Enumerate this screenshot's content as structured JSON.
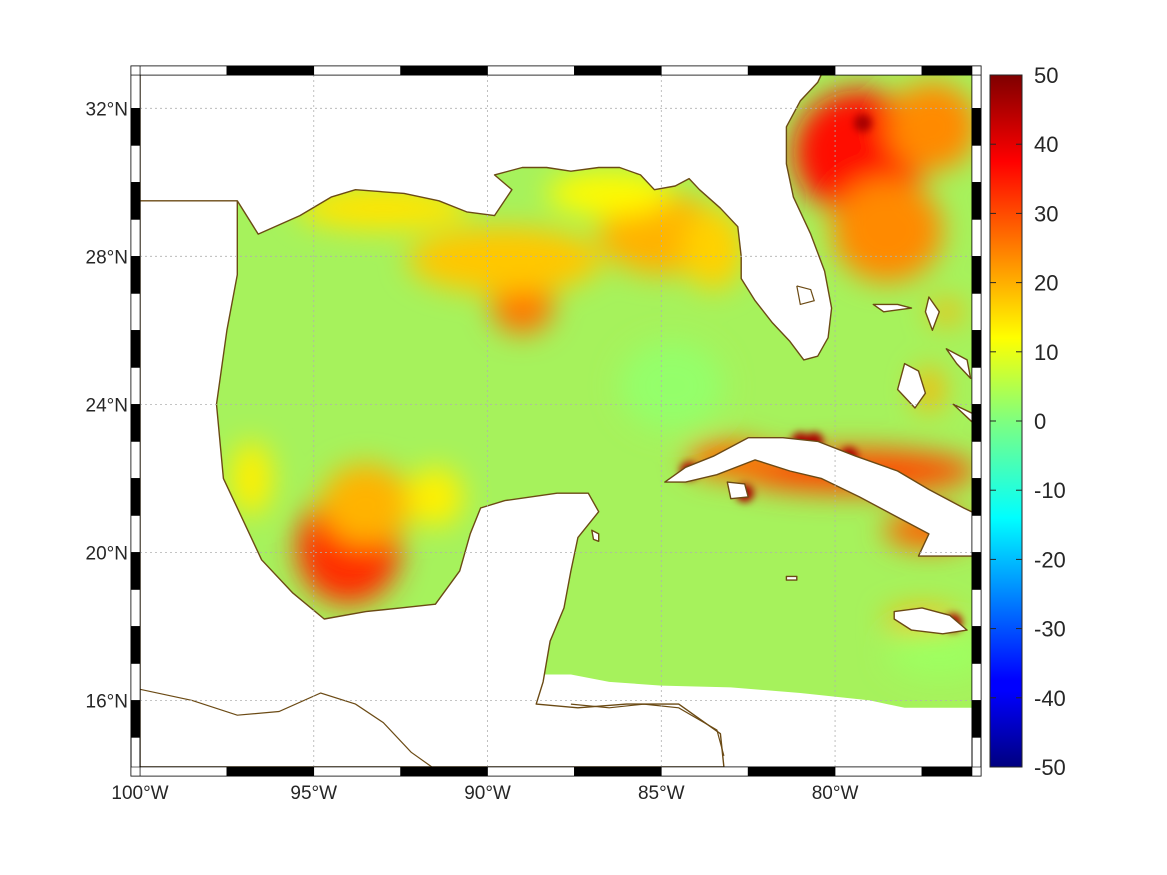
{
  "map": {
    "lon_range": [
      -100,
      -76.06
    ],
    "lat_range": [
      14.2,
      32.9
    ],
    "lat_ticks": [
      {
        "value": 32,
        "label": "32°N"
      },
      {
        "value": 28,
        "label": "28°N"
      },
      {
        "value": 24,
        "label": "24°N"
      },
      {
        "value": 20,
        "label": "20°N"
      },
      {
        "value": 16,
        "label": "16°N"
      }
    ],
    "lon_ticks": [
      {
        "value": -100,
        "label": "100°W"
      },
      {
        "value": -95,
        "label": "95°W"
      },
      {
        "value": -90,
        "label": "90°W"
      },
      {
        "value": -85,
        "label": "85°W"
      },
      {
        "value": -80,
        "label": "80°W"
      }
    ],
    "grid": "on",
    "coastline_color": "#6b4a14",
    "colormap": "jet"
  },
  "colorbar": {
    "min": -50,
    "max": 50,
    "labels": [
      "50",
      "40",
      "30",
      "20",
      "10",
      "0",
      "-10",
      "-20",
      "-30",
      "-40",
      "-50"
    ]
  },
  "field_blobs": [
    {
      "lon": -79,
      "lat": 31.5,
      "value": 48,
      "rlon": 1.2,
      "rlat": 0.9
    },
    {
      "lon": -79.3,
      "lat": 30.8,
      "value": 36,
      "rlon": 1.9,
      "rlat": 1.7
    },
    {
      "lon": -78.5,
      "lat": 28.7,
      "value": 24,
      "rlon": 1.6,
      "rlat": 1.4
    },
    {
      "lon": -77.2,
      "lat": 31.5,
      "value": 24,
      "rlon": 1.3,
      "rlat": 1.2
    },
    {
      "lon": -94,
      "lat": 20.1,
      "value": 33,
      "rlon": 1.5,
      "rlat": 1.5
    },
    {
      "lon": -93.5,
      "lat": 21.3,
      "value": 20,
      "rlon": 1.3,
      "rlat": 1.1
    },
    {
      "lon": -89,
      "lat": 26.7,
      "value": 26,
      "rlon": 0.9,
      "rlat": 0.8
    },
    {
      "lon": -89.5,
      "lat": 27.9,
      "value": 18,
      "rlon": 2.8,
      "rlat": 0.9
    },
    {
      "lon": -85,
      "lat": 28.6,
      "value": 20,
      "rlon": 1.8,
      "rlat": 1.1
    },
    {
      "lon": -93,
      "lat": 29.3,
      "value": 15,
      "rlon": 2.5,
      "rlat": 0.6
    },
    {
      "lon": -86.5,
      "lat": 29.7,
      "value": 13,
      "rlon": 1.8,
      "rlat": 0.6
    },
    {
      "lon": -83.5,
      "lat": 28.2,
      "value": 17,
      "rlon": 0.9,
      "rlat": 1.1
    },
    {
      "lon": -79.5,
      "lat": 22.2,
      "value": 30,
      "rlon": 3.6,
      "rlat": 0.6
    },
    {
      "lon": -83,
      "lat": 22.5,
      "value": 27,
      "rlon": 1.3,
      "rlat": 0.5
    },
    {
      "lon": -77.3,
      "lat": 20.6,
      "value": 28,
      "rlon": 1.3,
      "rlat": 0.5
    },
    {
      "lon": -77.5,
      "lat": 18.2,
      "value": 20,
      "rlon": 1.1,
      "rlat": 0.3
    },
    {
      "lon": -77.3,
      "lat": 24.4,
      "value": 20,
      "rlon": 0.4,
      "rlat": 0.6
    },
    {
      "lon": -76.8,
      "lat": 26.5,
      "value": 20,
      "rlon": 0.5,
      "rlat": 0.3
    },
    {
      "lon": -91.5,
      "lat": 21.5,
      "value": 14,
      "rlon": 0.8,
      "rlat": 0.8
    },
    {
      "lon": -96.8,
      "lat": 22.0,
      "value": 14,
      "rlon": 0.6,
      "rlat": 1.0
    },
    {
      "lon": -84.7,
      "lat": 24.5,
      "value": 2,
      "rlon": 1.5,
      "rlat": 1.2
    },
    {
      "lon": -77.0,
      "lat": 17.3,
      "value": 3,
      "rlon": 1.5,
      "rlat": 0.7
    }
  ],
  "hotspots": [
    {
      "lon": -84.2,
      "lat": 22.2
    },
    {
      "lon": -82.6,
      "lat": 21.6
    },
    {
      "lon": -81.0,
      "lat": 23.0
    },
    {
      "lon": -79.6,
      "lat": 22.6
    },
    {
      "lon": -78.5,
      "lat": 21.8
    },
    {
      "lon": -76.9,
      "lat": 21.1
    },
    {
      "lon": -76.1,
      "lat": 20.3
    },
    {
      "lon": -79.2,
      "lat": 31.6
    },
    {
      "lon": -76.6,
      "lat": 18.1
    },
    {
      "lon": -80.6,
      "lat": 23.0
    }
  ],
  "land": [
    {
      "name": "north-america",
      "coords": [
        [
          -100,
          14.2
        ],
        [
          -100,
          29.5
        ],
        [
          -97.2,
          29.5
        ],
        [
          -97.2,
          27.5
        ],
        [
          -97.5,
          26
        ],
        [
          -97.8,
          24
        ],
        [
          -97.6,
          22
        ],
        [
          -97.1,
          21
        ],
        [
          -96.5,
          19.8
        ],
        [
          -95.6,
          18.9
        ],
        [
          -94.7,
          18.2
        ],
        [
          -93.5,
          18.4
        ],
        [
          -92.5,
          18.5
        ],
        [
          -91.5,
          18.6
        ],
        [
          -90.8,
          19.5
        ],
        [
          -90.5,
          20.5
        ],
        [
          -90.2,
          21.2
        ],
        [
          -89.5,
          21.4
        ],
        [
          -88,
          21.6
        ],
        [
          -87.1,
          21.6
        ],
        [
          -86.8,
          21.1
        ],
        [
          -87.4,
          20.4
        ],
        [
          -87.6,
          19.5
        ],
        [
          -87.8,
          18.5
        ],
        [
          -88.2,
          17.6
        ],
        [
          -88.4,
          16.5
        ],
        [
          -88.6,
          15.9
        ],
        [
          -87.4,
          15.8
        ],
        [
          -86,
          15.9
        ],
        [
          -84.5,
          15.9
        ],
        [
          -83.3,
          15.1
        ],
        [
          -83.2,
          14.2
        ]
      ]
    },
    {
      "name": "us-gulf-coast",
      "coords": [
        [
          -100,
          33.5
        ],
        [
          -100,
          29.5
        ],
        [
          -97.2,
          29.5
        ],
        [
          -96.6,
          28.6
        ],
        [
          -95.4,
          29.1
        ],
        [
          -94.5,
          29.6
        ],
        [
          -93.8,
          29.8
        ],
        [
          -92.4,
          29.7
        ],
        [
          -91.4,
          29.5
        ],
        [
          -90.6,
          29.2
        ],
        [
          -89.8,
          29.1
        ],
        [
          -89.3,
          29.8
        ],
        [
          -89.8,
          30.2
        ],
        [
          -89.0,
          30.4
        ],
        [
          -88.3,
          30.4
        ],
        [
          -87.6,
          30.3
        ],
        [
          -86.8,
          30.4
        ],
        [
          -86.2,
          30.4
        ],
        [
          -85.6,
          30.2
        ],
        [
          -85.2,
          29.8
        ],
        [
          -84.6,
          29.9
        ],
        [
          -84.2,
          30.1
        ],
        [
          -83.9,
          29.8
        ],
        [
          -83.3,
          29.3
        ],
        [
          -82.8,
          28.8
        ],
        [
          -82.7,
          28.0
        ],
        [
          -82.7,
          27.4
        ],
        [
          -82.3,
          26.8
        ],
        [
          -81.8,
          26.2
        ],
        [
          -81.3,
          25.7
        ],
        [
          -80.9,
          25.2
        ],
        [
          -80.5,
          25.3
        ],
        [
          -80.2,
          25.8
        ],
        [
          -80.1,
          26.6
        ],
        [
          -80.3,
          27.6
        ],
        [
          -80.7,
          28.6
        ],
        [
          -81.2,
          29.6
        ],
        [
          -81.4,
          30.5
        ],
        [
          -81.4,
          31.5
        ],
        [
          -81.0,
          32.2
        ],
        [
          -80.5,
          32.7
        ],
        [
          -80.1,
          33.5
        ]
      ]
    },
    {
      "name": "cuba",
      "coords": [
        [
          -84.9,
          21.9
        ],
        [
          -84.3,
          22.3
        ],
        [
          -83.5,
          22.6
        ],
        [
          -82.5,
          23.1
        ],
        [
          -81.5,
          23.1
        ],
        [
          -80.5,
          23.0
        ],
        [
          -79.4,
          22.6
        ],
        [
          -78.2,
          22.2
        ],
        [
          -77.3,
          21.7
        ],
        [
          -76.3,
          21.2
        ],
        [
          -75.4,
          20.8
        ],
        [
          -74.2,
          20.3
        ],
        [
          -74.3,
          20.1
        ],
        [
          -75.6,
          19.9
        ],
        [
          -76.8,
          19.9
        ],
        [
          -77.6,
          19.9
        ],
        [
          -77.3,
          20.5
        ],
        [
          -78.1,
          20.9
        ],
        [
          -79.3,
          21.5
        ],
        [
          -80.4,
          22.0
        ],
        [
          -81.3,
          22.2
        ],
        [
          -82.3,
          22.5
        ],
        [
          -83.4,
          22.1
        ],
        [
          -84.3,
          21.9
        ],
        [
          -84.9,
          21.9
        ]
      ]
    },
    {
      "name": "isla-de-la-juventud",
      "coords": [
        [
          -83.1,
          21.9
        ],
        [
          -82.6,
          21.85
        ],
        [
          -82.5,
          21.5
        ],
        [
          -83.0,
          21.45
        ],
        [
          -83.1,
          21.9
        ]
      ]
    },
    {
      "name": "jamaica",
      "coords": [
        [
          -78.3,
          18.4
        ],
        [
          -77.5,
          18.5
        ],
        [
          -76.7,
          18.3
        ],
        [
          -76.2,
          17.9
        ],
        [
          -76.9,
          17.8
        ],
        [
          -77.8,
          17.9
        ],
        [
          -78.3,
          18.2
        ],
        [
          -78.3,
          18.4
        ]
      ]
    },
    {
      "name": "andros",
      "coords": [
        [
          -78.0,
          25.1
        ],
        [
          -77.6,
          24.9
        ],
        [
          -77.4,
          24.3
        ],
        [
          -77.7,
          23.9
        ],
        [
          -78.2,
          24.4
        ],
        [
          -78.0,
          25.1
        ]
      ]
    },
    {
      "name": "grand-bahama",
      "coords": [
        [
          -78.9,
          26.7
        ],
        [
          -78.2,
          26.7
        ],
        [
          -77.8,
          26.6
        ],
        [
          -78.6,
          26.5
        ],
        [
          -78.9,
          26.7
        ]
      ]
    },
    {
      "name": "abaco",
      "coords": [
        [
          -77.3,
          26.9
        ],
        [
          -77.0,
          26.5
        ],
        [
          -77.2,
          26.0
        ],
        [
          -77.4,
          26.5
        ],
        [
          -77.3,
          26.9
        ]
      ]
    },
    {
      "name": "eleuthera",
      "coords": [
        [
          -76.8,
          25.5
        ],
        [
          -76.2,
          25.2
        ],
        [
          -76.1,
          24.7
        ],
        [
          -76.5,
          25.1
        ],
        [
          -76.8,
          25.5
        ]
      ]
    },
    {
      "name": "cozumel",
      "coords": [
        [
          -87.0,
          20.6
        ],
        [
          -86.8,
          20.5
        ],
        [
          -86.8,
          20.3
        ],
        [
          -86.95,
          20.35
        ],
        [
          -87.0,
          20.6
        ]
      ]
    },
    {
      "name": "cayman",
      "coords": [
        [
          -81.4,
          19.35
        ],
        [
          -81.1,
          19.35
        ],
        [
          -81.1,
          19.25
        ],
        [
          -81.4,
          19.25
        ],
        [
          -81.4,
          19.35
        ]
      ]
    },
    {
      "name": "pinos-shelf",
      "coords": [
        [
          -76.6,
          24.0
        ],
        [
          -75.7,
          23.6
        ],
        [
          -75.3,
          23.1
        ],
        [
          -75.8,
          23.3
        ],
        [
          -76.6,
          24.0
        ]
      ]
    }
  ],
  "nodata": [
    {
      "name": "caribbean-south",
      "coords": [
        [
          -88.6,
          14.2
        ],
        [
          -88.6,
          16.7
        ],
        [
          -87.6,
          16.7
        ],
        [
          -86.5,
          16.5
        ],
        [
          -85,
          16.4
        ],
        [
          -83,
          16.35
        ],
        [
          -81,
          16.2
        ],
        [
          -79,
          16.0
        ],
        [
          -78,
          15.8
        ],
        [
          -76.06,
          15.8
        ],
        [
          -76.06,
          14.2
        ]
      ]
    },
    {
      "name": "bay-campeche-edge",
      "coords": [
        [
          -97.4,
          21.0
        ],
        [
          -96.9,
          20.2
        ],
        [
          -96.4,
          19.6
        ],
        [
          -96.9,
          19.9
        ],
        [
          -97.4,
          21.0
        ]
      ]
    }
  ],
  "outline_extras": [
    {
      "name": "central-america-outline",
      "coords": [
        [
          -100,
          16.3
        ],
        [
          -98.5,
          16.0
        ],
        [
          -97.2,
          15.6
        ],
        [
          -96.0,
          15.7
        ],
        [
          -94.8,
          16.2
        ],
        [
          -93.8,
          15.9
        ],
        [
          -93.0,
          15.4
        ],
        [
          -92.2,
          14.6
        ],
        [
          -91.6,
          14.2
        ]
      ]
    },
    {
      "name": "honduras-outline",
      "coords": [
        [
          -87.6,
          15.9
        ],
        [
          -86.5,
          15.8
        ],
        [
          -85.5,
          15.9
        ],
        [
          -84.5,
          15.8
        ],
        [
          -83.4,
          15.2
        ],
        [
          -83.2,
          14.5
        ]
      ]
    },
    {
      "name": "lake-okeechobee",
      "coords": [
        [
          -81.1,
          27.2
        ],
        [
          -80.7,
          27.1
        ],
        [
          -80.6,
          26.8
        ],
        [
          -81.0,
          26.7
        ],
        [
          -81.1,
          27.2
        ]
      ]
    }
  ]
}
